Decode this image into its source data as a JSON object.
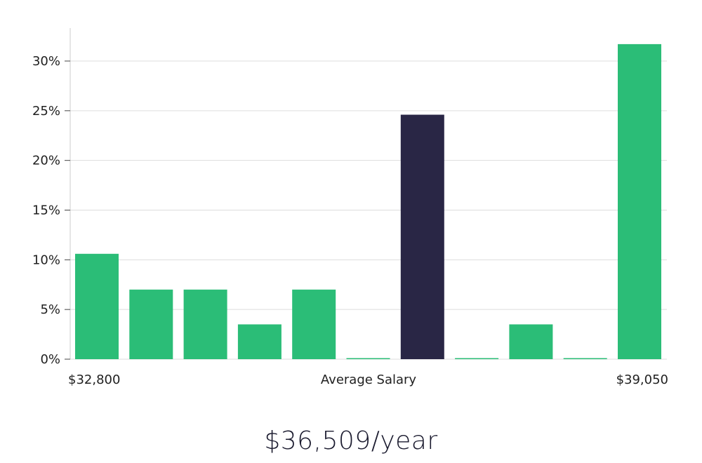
{
  "chart_data": {
    "type": "bar",
    "title": "",
    "xlabel": "Average Salary",
    "ylabel": "",
    "x_range_labels": {
      "min": "$32,800",
      "max": "$39,050"
    },
    "values": [
      10.6,
      7.0,
      7.0,
      3.5,
      7.0,
      0.0,
      24.6,
      0.0,
      3.5,
      0.0,
      31.7
    ],
    "highlight_index": 6,
    "ylim": [
      0,
      32
    ],
    "yticks": [
      0,
      5,
      10,
      15,
      20,
      25,
      30
    ],
    "ytick_labels": [
      "0%",
      "5%",
      "10%",
      "15%",
      "20%",
      "25%",
      "30%"
    ],
    "grid": true,
    "colors": {
      "bar": "#2bbd77",
      "highlight": "#292645",
      "grid": "#dddddd",
      "axis": "#cccccc"
    }
  },
  "summary": {
    "average_salary": "$36,509/year"
  }
}
